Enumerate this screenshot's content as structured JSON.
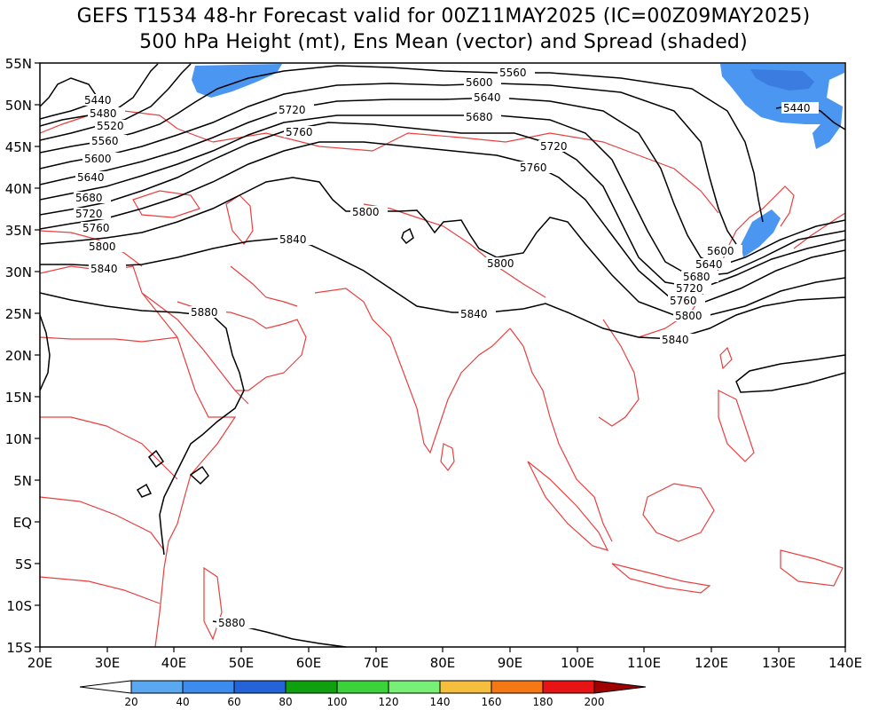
{
  "title": {
    "line1": "GEFS T1534 48-hr Forecast valid for 00Z11MAY2025 (IC=00Z09MAY2025)",
    "line2": "500 hPa Height (mt), Ens Mean (vector) and Spread (shaded)"
  },
  "axes": {
    "lon_labels": [
      "20E",
      "30E",
      "40E",
      "50E",
      "60E",
      "70E",
      "80E",
      "90E",
      "100E",
      "110E",
      "120E",
      "130E",
      "140E"
    ],
    "lat_labels": [
      "55N",
      "50N",
      "45N",
      "40N",
      "35N",
      "30N",
      "25N",
      "20N",
      "15N",
      "10N",
      "5N",
      "EQ",
      "5S",
      "10S",
      "15S"
    ]
  },
  "contour_labels": [
    "5440",
    "5480",
    "5520",
    "5560",
    "5600",
    "5640",
    "5680",
    "5720",
    "5760",
    "5800",
    "5840",
    "5880",
    "5720",
    "5760",
    "5560",
    "5600",
    "5640",
    "5680",
    "5720",
    "5760",
    "5800",
    "5800",
    "5840",
    "5880",
    "5600",
    "5640",
    "5680",
    "5720",
    "5760",
    "5800",
    "5840",
    "5840",
    "5440"
  ],
  "colorbar": {
    "labels": [
      "20",
      "40",
      "60",
      "80",
      "100",
      "120",
      "140",
      "160",
      "180",
      "200"
    ],
    "colors": [
      "#ffffff",
      "#5aa8f0",
      "#3c8cf0",
      "#2464d8",
      "#0fa00f",
      "#3cd23c",
      "#78f078",
      "#f5be3c",
      "#f57814",
      "#e61414",
      "#a00000"
    ]
  },
  "colors": {
    "coastline": "#e84040",
    "contour": "#000000",
    "spread": "#4a96f0"
  }
}
